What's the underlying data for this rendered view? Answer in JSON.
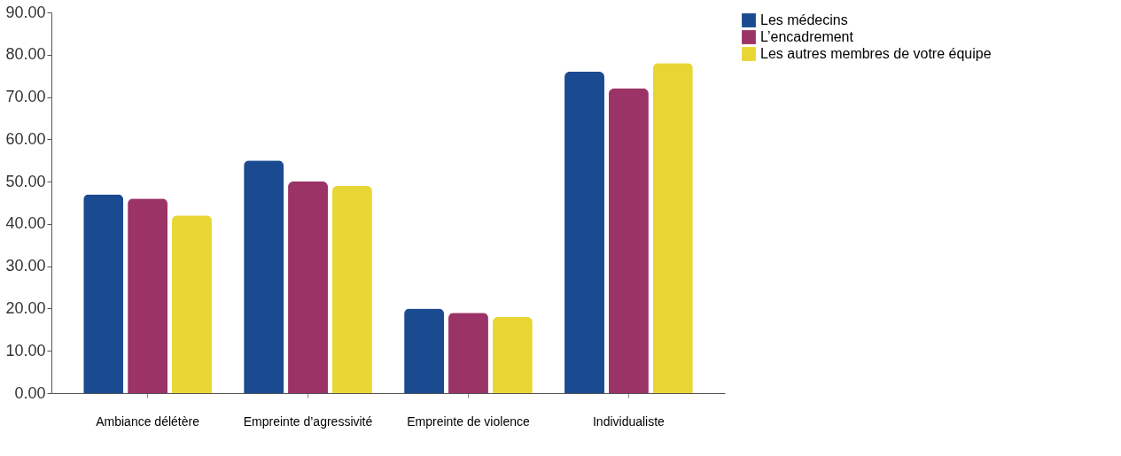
{
  "chart_data": {
    "type": "bar",
    "categories": [
      "Ambiance délétère",
      "Empreinte d’agressivité",
      "Empreinte de violence",
      "Individualiste"
    ],
    "series": [
      {
        "name": "Les médecins",
        "color": "#1a4a8f",
        "values": [
          47,
          55,
          20,
          76
        ]
      },
      {
        "name": "L’encadrement",
        "color": "#9b3366",
        "values": [
          46,
          50,
          19,
          72
        ]
      },
      {
        "name": "Les autres membres de votre équipe",
        "color": "#e8d634",
        "values": [
          42,
          49,
          18,
          78
        ]
      }
    ],
    "ylim": [
      0,
      90
    ],
    "yticks": [
      {
        "value": 0,
        "label": "0.00"
      },
      {
        "value": 10,
        "label": "10.00"
      },
      {
        "value": 20,
        "label": "20.00"
      },
      {
        "value": 30,
        "label": "30.00"
      },
      {
        "value": 40,
        "label": "40.00"
      },
      {
        "value": 50,
        "label": "50.00"
      },
      {
        "value": 60,
        "label": "60.00"
      },
      {
        "value": 70,
        "label": "70.00"
      },
      {
        "value": 80,
        "label": "80.00"
      },
      {
        "value": 90,
        "label": "90.00"
      }
    ],
    "grid": false,
    "legend": "right"
  }
}
